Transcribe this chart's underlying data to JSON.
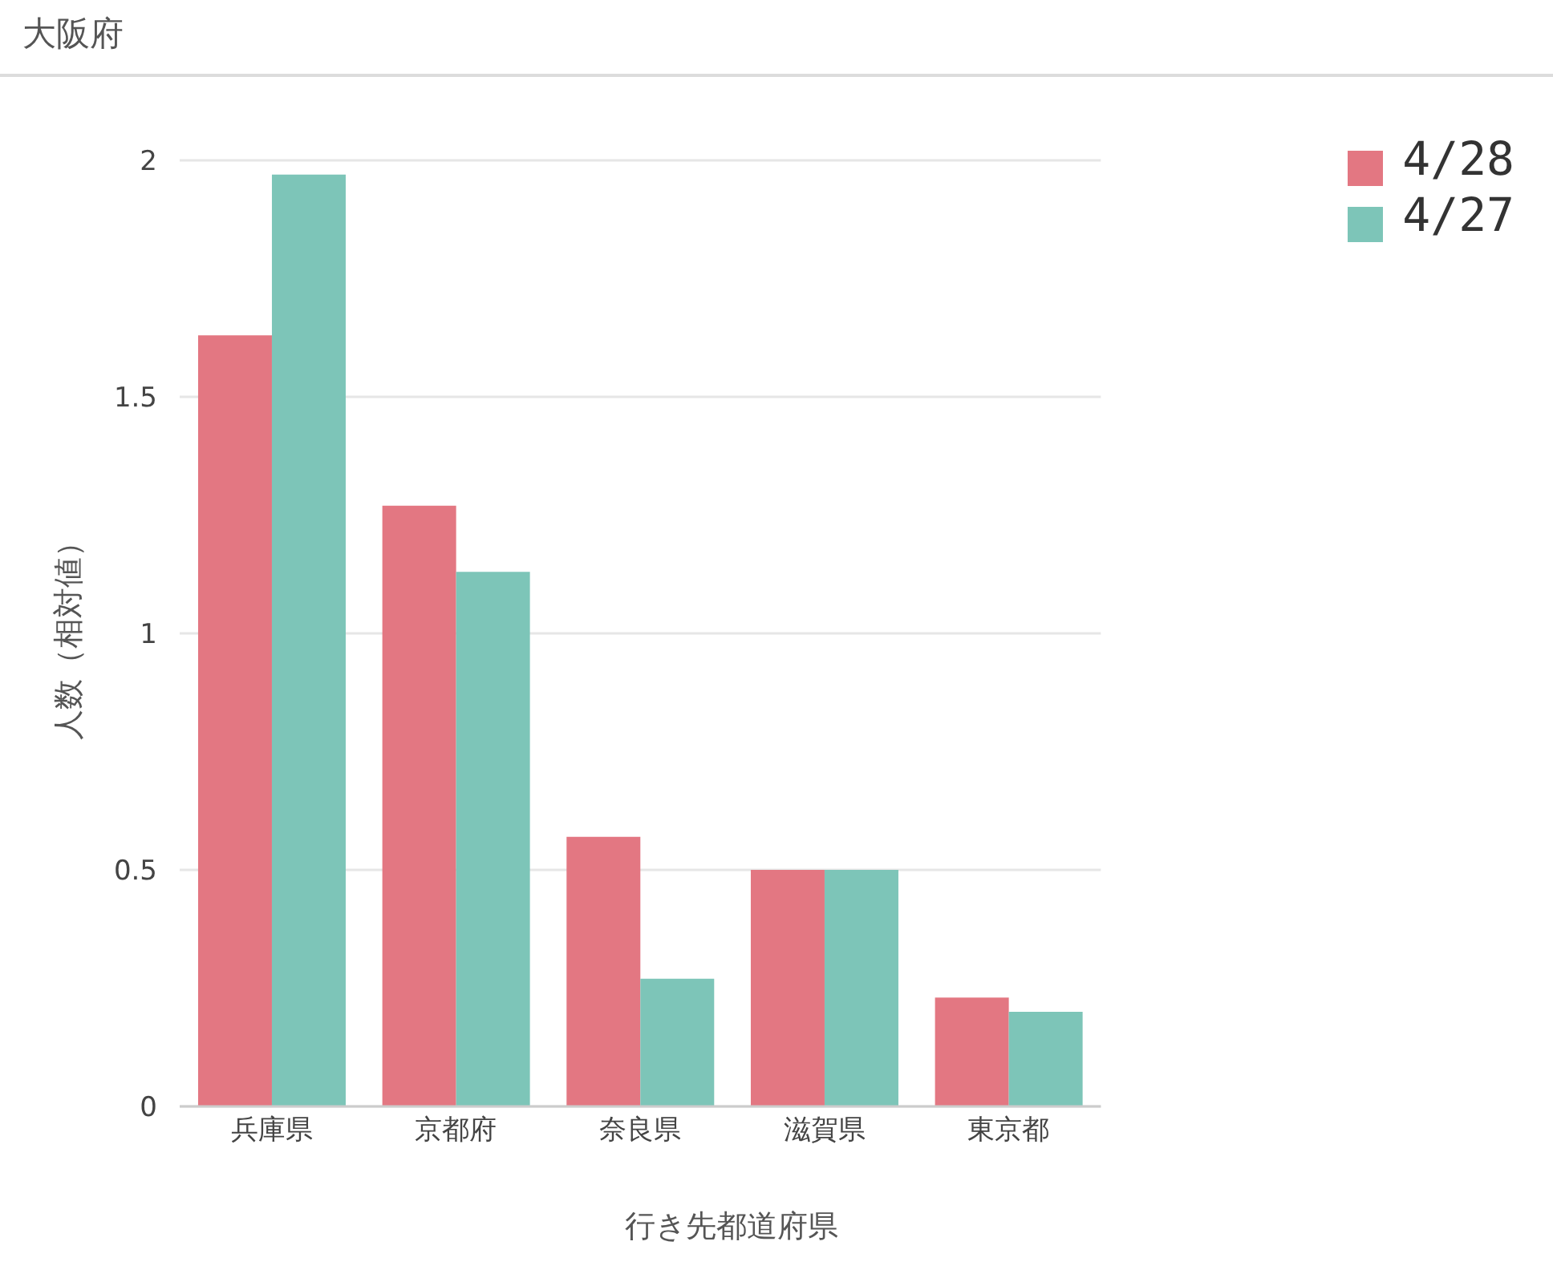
{
  "chart_data": {
    "type": "bar",
    "title": "大阪府",
    "xlabel": "行き先都道府県",
    "ylabel": "人数（相対値）",
    "categories": [
      "兵庫県",
      "京都府",
      "奈良県",
      "滋賀県",
      "東京都"
    ],
    "series": [
      {
        "name": "4/28",
        "color": "#e37782",
        "values": [
          1.63,
          1.27,
          0.57,
          0.5,
          0.23
        ]
      },
      {
        "name": "4/27",
        "color": "#7dc5b8",
        "values": [
          1.97,
          1.13,
          0.27,
          0.5,
          0.2
        ]
      }
    ],
    "ylim": [
      0,
      2
    ],
    "yticks": [
      0,
      0.5,
      1,
      1.5,
      2
    ],
    "grid": "y",
    "legend": "top right"
  }
}
